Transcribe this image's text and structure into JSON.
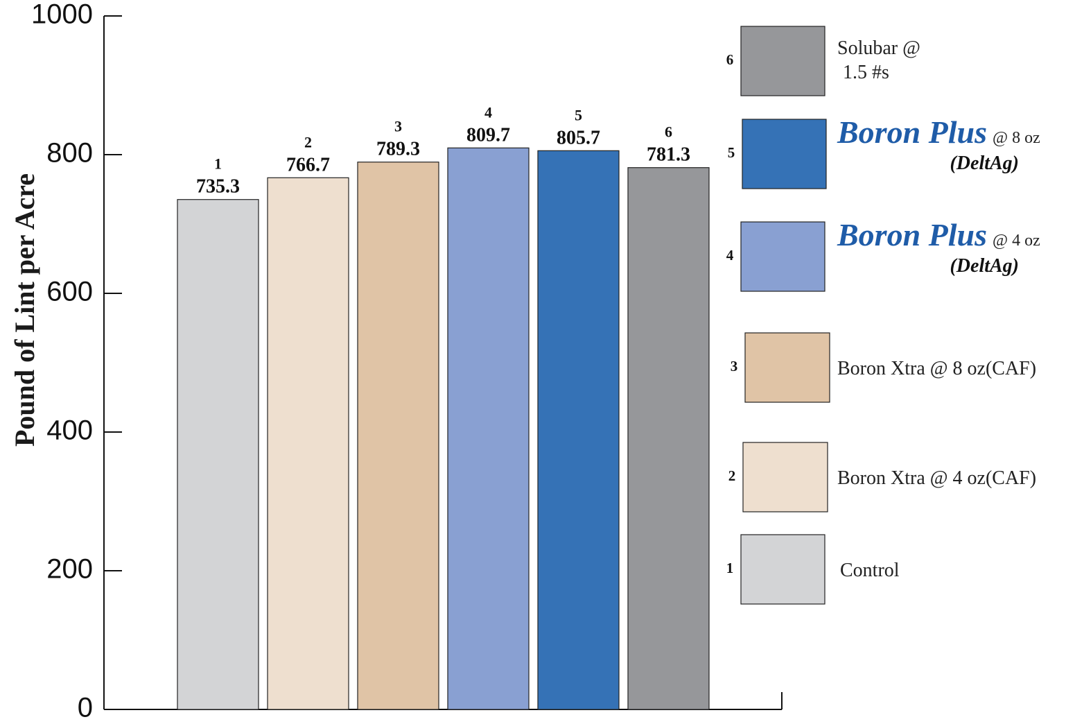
{
  "chart_data": {
    "type": "bar",
    "title": "",
    "xlabel": "",
    "ylabel": "Pound of Lint per Acre",
    "ylim": [
      0,
      1000
    ],
    "yticks": [
      0,
      200,
      400,
      600,
      800,
      1000
    ],
    "grid": false,
    "legend_position": "right",
    "categories": [
      "1",
      "2",
      "3",
      "4",
      "5",
      "6"
    ],
    "values": [
      735.3,
      766.7,
      789.3,
      809.7,
      805.7,
      781.3
    ],
    "value_labels": [
      "735.3",
      "766.7",
      "789.3",
      "809.7",
      "805.7",
      "781.3"
    ],
    "colors": [
      "#d3d4d6",
      "#eedfcf",
      "#e0c4a6",
      "#89a0d2",
      "#3572b6",
      "#96979a"
    ],
    "brand_color": "#1f5ca8",
    "legend": [
      {
        "num": "6",
        "color": "#96979a",
        "text1": "Solubar @",
        "text2": "1.5 #s"
      },
      {
        "num": "5",
        "color": "#3572b6",
        "brand": "Boron Plus",
        "text": "@ 8 oz",
        "sub": "(DeltAg)"
      },
      {
        "num": "4",
        "color": "#89a0d2",
        "brand": "Boron Plus",
        "text": "@ 4 oz",
        "sub": "(DeltAg)"
      },
      {
        "num": "3",
        "color": "#e0c4a6",
        "text": "Boron  Xtra @ 8 oz(CAF)"
      },
      {
        "num": "2",
        "color": "#eedfcf",
        "text": "Boron  Xtra @ 4 oz(CAF)"
      },
      {
        "num": "1",
        "color": "#d3d4d6",
        "text": "Control"
      }
    ]
  }
}
